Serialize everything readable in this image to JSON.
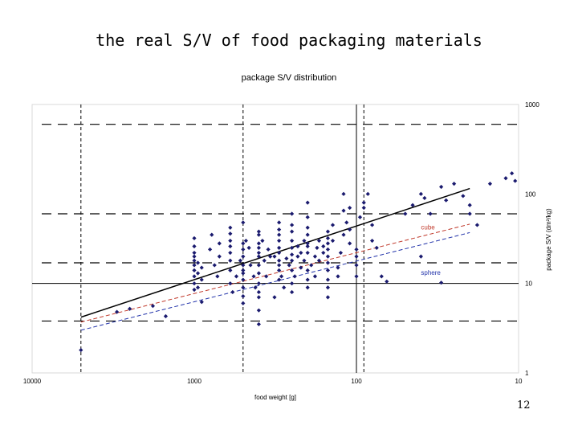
{
  "slide": {
    "title": "the real S/V of food packaging materials",
    "page_number": "12"
  },
  "chart_data": {
    "type": "scatter",
    "title": "package S/V distribution",
    "xlabel": "food weight [g]",
    "ylabel": "package S/V (dm²/kg)",
    "x_scale": "log",
    "y_scale": "log",
    "x_reversed": true,
    "xlim": [
      10000,
      10
    ],
    "ylim": [
      1,
      1000
    ],
    "x_ticks": [
      "10000",
      "1000",
      "100",
      "10"
    ],
    "y_ticks": [
      "1000",
      "100",
      "10",
      "1"
    ],
    "y_axis_position": "right",
    "grid": false,
    "colors": {
      "points": "#1a1a6e",
      "trend": "#000000",
      "cube": "#c0392b",
      "sphere": "#2233aa",
      "reference": "#000000"
    },
    "reference_lines": {
      "vertical_dashed": [
        5000,
        500,
        90
      ],
      "vertical_solid": [
        100
      ],
      "horizontal_dashed": [
        600,
        60,
        17,
        3.8
      ],
      "horizontal_solid": [
        10
      ]
    },
    "lines": [
      {
        "name": "",
        "color": "#000000",
        "style": "solid",
        "x": [
          5000,
          20
        ],
        "y": [
          4.2,
          115
        ]
      },
      {
        "name": "cube",
        "color": "#c0392b",
        "style": "dashed",
        "x": [
          5000,
          20
        ],
        "y": [
          3.7,
          46
        ]
      },
      {
        "name": "sphere",
        "color": "#2233aa",
        "style": "dashed",
        "x": [
          5000,
          20
        ],
        "y": [
          3.0,
          37
        ]
      }
    ],
    "annotations": [
      {
        "text": "cube",
        "x": 40,
        "y": 40,
        "color": "#c0392b"
      },
      {
        "text": "sphere",
        "x": 40,
        "y": 12.5,
        "color": "#2233aa"
      }
    ],
    "points": [
      [
        5000,
        1.8
      ],
      [
        3000,
        4.8
      ],
      [
        2500,
        5.2
      ],
      [
        1800,
        5.6
      ],
      [
        1500,
        4.3
      ],
      [
        1000,
        8.5
      ],
      [
        1000,
        10
      ],
      [
        1000,
        12
      ],
      [
        1000,
        14
      ],
      [
        1000,
        16
      ],
      [
        1000,
        18
      ],
      [
        1000,
        20
      ],
      [
        1000,
        22
      ],
      [
        1000,
        26
      ],
      [
        1000,
        32
      ],
      [
        950,
        9
      ],
      [
        950,
        13
      ],
      [
        950,
        17
      ],
      [
        900,
        6.2
      ],
      [
        900,
        11
      ],
      [
        900,
        15
      ],
      [
        800,
        24
      ],
      [
        780,
        35
      ],
      [
        750,
        16
      ],
      [
        720,
        12
      ],
      [
        700,
        20
      ],
      [
        700,
        28
      ],
      [
        600,
        18
      ],
      [
        600,
        22
      ],
      [
        600,
        26
      ],
      [
        600,
        30
      ],
      [
        600,
        36
      ],
      [
        600,
        42
      ],
      [
        600,
        14
      ],
      [
        600,
        10
      ],
      [
        580,
        8
      ],
      [
        550,
        12
      ],
      [
        520,
        18
      ],
      [
        500,
        24
      ],
      [
        500,
        48
      ],
      [
        500,
        28
      ],
      [
        500,
        16
      ],
      [
        500,
        14
      ],
      [
        500,
        11
      ],
      [
        500,
        9
      ],
      [
        500,
        7.2
      ],
      [
        500,
        6
      ],
      [
        500,
        13
      ],
      [
        500,
        20
      ],
      [
        480,
        30
      ],
      [
        460,
        25
      ],
      [
        450,
        16
      ],
      [
        430,
        12
      ],
      [
        420,
        9
      ],
      [
        400,
        7
      ],
      [
        400,
        5
      ],
      [
        400,
        3.5
      ],
      [
        400,
        8
      ],
      [
        400,
        10
      ],
      [
        400,
        13
      ],
      [
        400,
        16
      ],
      [
        400,
        20
      ],
      [
        400,
        22
      ],
      [
        400,
        25
      ],
      [
        400,
        28
      ],
      [
        400,
        35
      ],
      [
        400,
        38
      ],
      [
        380,
        30
      ],
      [
        370,
        18
      ],
      [
        360,
        12
      ],
      [
        350,
        24
      ],
      [
        340,
        20
      ],
      [
        320,
        7
      ],
      [
        320,
        20
      ],
      [
        300,
        22
      ],
      [
        300,
        18
      ],
      [
        300,
        14
      ],
      [
        300,
        11
      ],
      [
        300,
        25
      ],
      [
        300,
        30
      ],
      [
        300,
        35
      ],
      [
        300,
        40
      ],
      [
        300,
        48
      ],
      [
        300,
        16
      ],
      [
        290,
        12
      ],
      [
        280,
        9
      ],
      [
        270,
        19
      ],
      [
        260,
        16
      ],
      [
        250,
        14
      ],
      [
        250,
        18
      ],
      [
        250,
        21
      ],
      [
        250,
        25
      ],
      [
        250,
        30
      ],
      [
        250,
        38
      ],
      [
        250,
        45
      ],
      [
        250,
        60
      ],
      [
        250,
        10
      ],
      [
        250,
        8
      ],
      [
        240,
        12
      ],
      [
        230,
        20
      ],
      [
        230,
        26
      ],
      [
        220,
        22
      ],
      [
        220,
        15
      ],
      [
        210,
        18
      ],
      [
        210,
        30
      ],
      [
        200,
        22
      ],
      [
        200,
        26
      ],
      [
        200,
        28
      ],
      [
        200,
        35
      ],
      [
        200,
        42
      ],
      [
        200,
        55
      ],
      [
        200,
        80
      ],
      [
        200,
        14
      ],
      [
        200,
        11
      ],
      [
        200,
        9
      ],
      [
        190,
        16
      ],
      [
        180,
        20
      ],
      [
        180,
        12
      ],
      [
        175,
        25
      ],
      [
        170,
        18
      ],
      [
        170,
        30
      ],
      [
        160,
        22
      ],
      [
        160,
        26
      ],
      [
        150,
        20
      ],
      [
        150,
        24
      ],
      [
        150,
        28
      ],
      [
        150,
        32
      ],
      [
        150,
        38
      ],
      [
        150,
        14
      ],
      [
        150,
        11
      ],
      [
        150,
        9
      ],
      [
        150,
        7
      ],
      [
        150,
        17
      ],
      [
        140,
        45
      ],
      [
        140,
        30
      ],
      [
        130,
        15
      ],
      [
        130,
        12
      ],
      [
        125,
        22
      ],
      [
        120,
        35
      ],
      [
        120,
        65
      ],
      [
        120,
        100
      ],
      [
        115,
        48
      ],
      [
        110,
        70
      ],
      [
        110,
        28
      ],
      [
        110,
        40
      ],
      [
        100,
        12
      ],
      [
        100,
        16
      ],
      [
        100,
        20
      ],
      [
        100,
        24
      ],
      [
        95,
        55
      ],
      [
        90,
        70
      ],
      [
        90,
        80
      ],
      [
        85,
        100
      ],
      [
        80,
        45
      ],
      [
        80,
        30
      ],
      [
        75,
        25
      ],
      [
        70,
        12
      ],
      [
        65,
        10.5
      ],
      [
        50,
        60
      ],
      [
        45,
        75
      ],
      [
        40,
        100
      ],
      [
        40,
        20
      ],
      [
        38,
        90
      ],
      [
        35,
        60
      ],
      [
        30,
        120
      ],
      [
        30,
        10.2
      ],
      [
        28,
        85
      ],
      [
        25,
        130
      ],
      [
        22,
        95
      ],
      [
        20,
        75
      ],
      [
        20,
        60
      ],
      [
        18,
        45
      ],
      [
        15,
        130
      ],
      [
        12,
        150
      ],
      [
        11,
        170
      ],
      [
        10.5,
        140
      ]
    ]
  }
}
